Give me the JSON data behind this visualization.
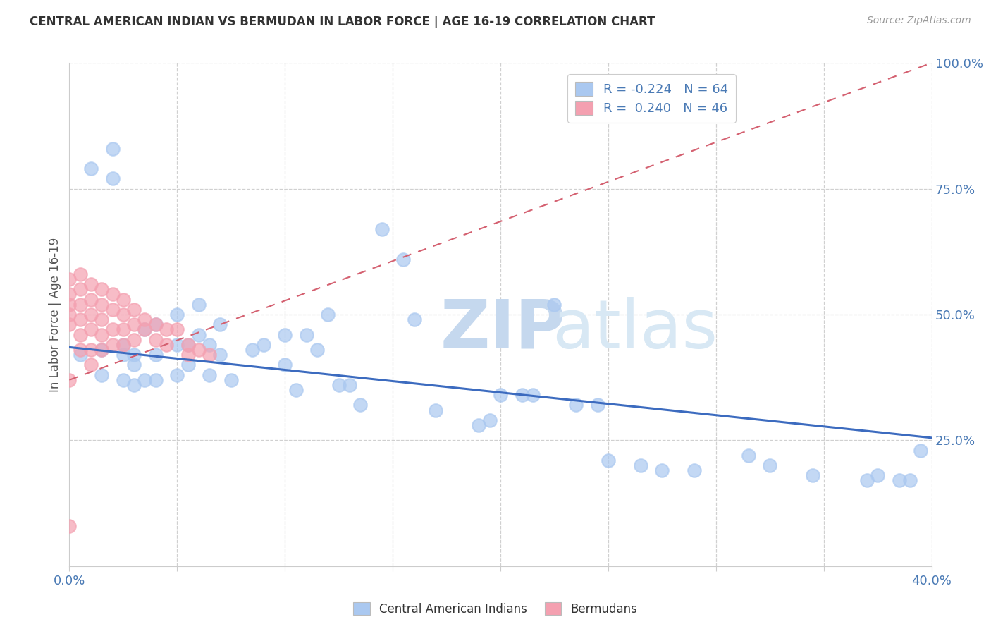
{
  "title": "CENTRAL AMERICAN INDIAN VS BERMUDAN IN LABOR FORCE | AGE 16-19 CORRELATION CHART",
  "source": "Source: ZipAtlas.com",
  "ylabel": "In Labor Force | Age 16-19",
  "xlim": [
    0.0,
    0.4
  ],
  "ylim": [
    0.0,
    1.0
  ],
  "blue_R": -0.224,
  "blue_N": 64,
  "pink_R": 0.24,
  "pink_N": 46,
  "blue_color": "#aac8f0",
  "pink_color": "#f4a0b0",
  "blue_line_color": "#3c6bbf",
  "pink_line_color": "#d46070",
  "blue_scatter_x": [
    0.005,
    0.01,
    0.015,
    0.015,
    0.02,
    0.02,
    0.025,
    0.025,
    0.025,
    0.03,
    0.03,
    0.03,
    0.035,
    0.035,
    0.04,
    0.04,
    0.04,
    0.05,
    0.05,
    0.05,
    0.055,
    0.055,
    0.06,
    0.06,
    0.065,
    0.065,
    0.07,
    0.07,
    0.075,
    0.085,
    0.09,
    0.1,
    0.1,
    0.105,
    0.11,
    0.115,
    0.12,
    0.125,
    0.13,
    0.135,
    0.145,
    0.155,
    0.16,
    0.17,
    0.19,
    0.195,
    0.2,
    0.21,
    0.215,
    0.225,
    0.235,
    0.245,
    0.25,
    0.265,
    0.275,
    0.29,
    0.315,
    0.325,
    0.345,
    0.37,
    0.375,
    0.385,
    0.39,
    0.395
  ],
  "blue_scatter_y": [
    0.42,
    0.79,
    0.43,
    0.38,
    0.83,
    0.77,
    0.44,
    0.42,
    0.37,
    0.42,
    0.4,
    0.36,
    0.47,
    0.37,
    0.48,
    0.42,
    0.37,
    0.5,
    0.44,
    0.38,
    0.44,
    0.4,
    0.52,
    0.46,
    0.44,
    0.38,
    0.48,
    0.42,
    0.37,
    0.43,
    0.44,
    0.46,
    0.4,
    0.35,
    0.46,
    0.43,
    0.5,
    0.36,
    0.36,
    0.32,
    0.67,
    0.61,
    0.49,
    0.31,
    0.28,
    0.29,
    0.34,
    0.34,
    0.34,
    0.52,
    0.32,
    0.32,
    0.21,
    0.2,
    0.19,
    0.19,
    0.22,
    0.2,
    0.18,
    0.17,
    0.18,
    0.17,
    0.17,
    0.23
  ],
  "pink_scatter_x": [
    0.0,
    0.0,
    0.0,
    0.0,
    0.0,
    0.005,
    0.005,
    0.005,
    0.005,
    0.005,
    0.005,
    0.01,
    0.01,
    0.01,
    0.01,
    0.01,
    0.01,
    0.015,
    0.015,
    0.015,
    0.015,
    0.015,
    0.02,
    0.02,
    0.02,
    0.02,
    0.025,
    0.025,
    0.025,
    0.025,
    0.03,
    0.03,
    0.03,
    0.035,
    0.035,
    0.04,
    0.04,
    0.045,
    0.045,
    0.05,
    0.055,
    0.055,
    0.06,
    0.065,
    0.0,
    0.0
  ],
  "pink_scatter_y": [
    0.57,
    0.54,
    0.52,
    0.5,
    0.48,
    0.58,
    0.55,
    0.52,
    0.49,
    0.46,
    0.43,
    0.56,
    0.53,
    0.5,
    0.47,
    0.43,
    0.4,
    0.55,
    0.52,
    0.49,
    0.46,
    0.43,
    0.54,
    0.51,
    0.47,
    0.44,
    0.53,
    0.5,
    0.47,
    0.44,
    0.51,
    0.48,
    0.45,
    0.49,
    0.47,
    0.48,
    0.45,
    0.47,
    0.44,
    0.47,
    0.44,
    0.42,
    0.43,
    0.42,
    0.37,
    0.08
  ],
  "blue_line_x": [
    0.0,
    0.4
  ],
  "blue_line_y": [
    0.435,
    0.255
  ],
  "pink_line_x": [
    0.0,
    0.4
  ],
  "pink_line_y": [
    0.37,
    1.0
  ],
  "watermark_text": "ZIPatlas",
  "watermark_color": "#d8e8f8",
  "legend_blue_label": "R = -0.224   N = 64",
  "legend_pink_label": "R =  0.240   N = 46",
  "bottom_legend_blue": "Central American Indians",
  "bottom_legend_pink": "Bermudans"
}
